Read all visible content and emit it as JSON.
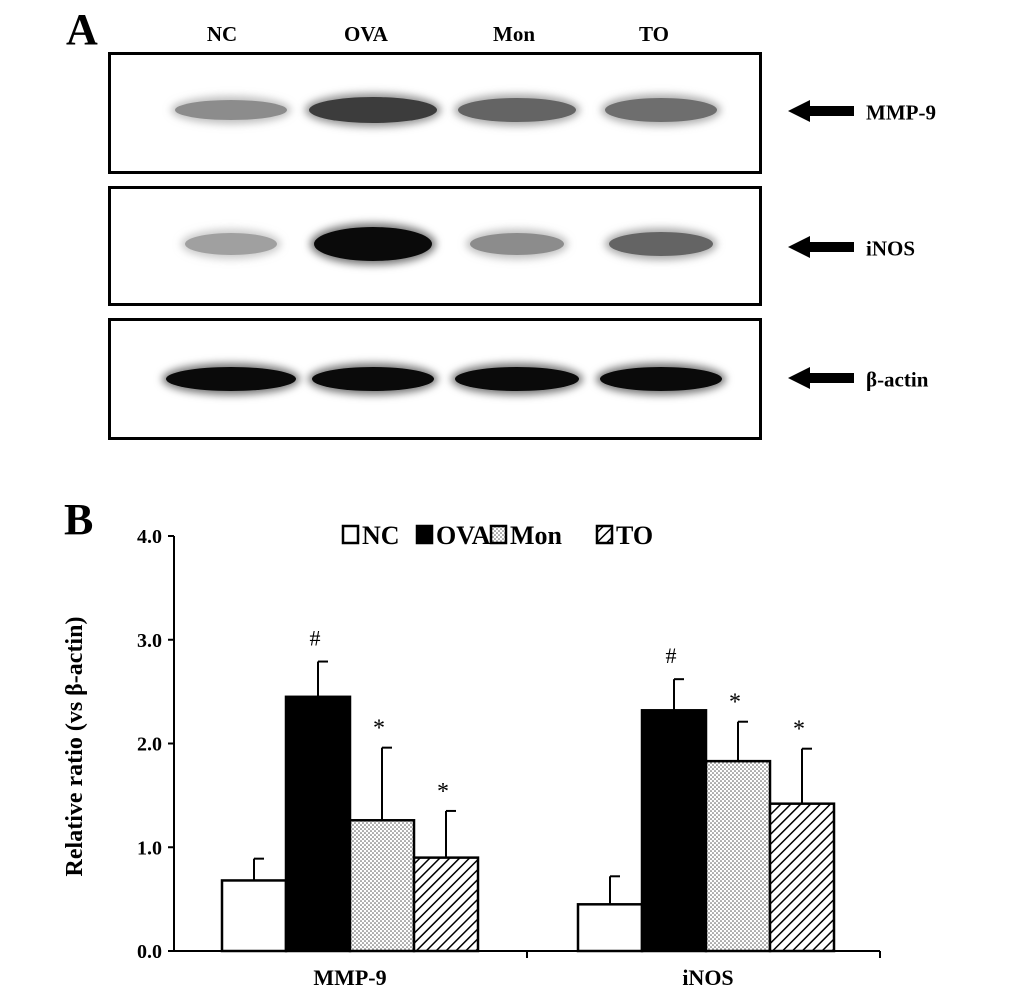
{
  "panel_a": {
    "letter": "A",
    "lanes": [
      "NC",
      "OVA",
      "Mon",
      "TO"
    ],
    "rows": [
      {
        "label": "MMP-9",
        "intensity": [
          0.35,
          0.75,
          0.55,
          0.5
        ]
      },
      {
        "label": "iNOS",
        "intensity": [
          0.25,
          1.0,
          0.35,
          0.55
        ]
      },
      {
        "label": "β-actin",
        "intensity": [
          1.0,
          1.0,
          1.0,
          1.0
        ]
      }
    ]
  },
  "panel_b": {
    "letter": "B"
  },
  "chart_data": {
    "type": "bar",
    "categories": [
      "MMP-9",
      "iNOS"
    ],
    "series": [
      {
        "name": "NC",
        "values": [
          0.68,
          0.45
        ],
        "errors": [
          0.21,
          0.27
        ],
        "marks": [
          "",
          ""
        ],
        "fill": "white"
      },
      {
        "name": "OVA",
        "values": [
          2.45,
          2.32
        ],
        "errors": [
          0.34,
          0.3
        ],
        "marks": [
          "#",
          "#"
        ],
        "fill": "black"
      },
      {
        "name": "Mon",
        "values": [
          1.26,
          1.83
        ],
        "errors": [
          0.7,
          0.38
        ],
        "marks": [
          "*",
          "*"
        ],
        "fill": "dots"
      },
      {
        "name": "TO",
        "values": [
          0.9,
          1.42
        ],
        "errors": [
          0.45,
          0.53
        ],
        "marks": [
          "*",
          "*"
        ],
        "fill": "hatch"
      }
    ],
    "ylabel": "Relative ratio (vs β-actin)",
    "ylim": [
      0,
      4
    ],
    "yticks": [
      "0.0",
      "1.0",
      "2.0",
      "3.0",
      "4.0"
    ],
    "grid": false,
    "legend": "top-center"
  }
}
